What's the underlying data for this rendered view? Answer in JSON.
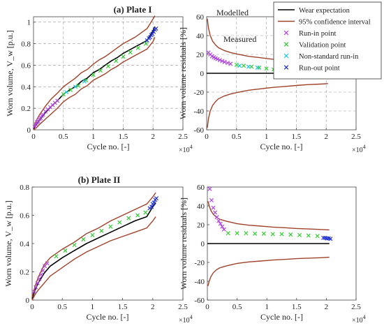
{
  "figure": {
    "panel_a_title": "(a) Plate I",
    "panel_b_title": "(b) Plate II",
    "annotations": {
      "modelled": "Modelled",
      "measured": "Measured"
    }
  },
  "legend": {
    "items": [
      {
        "label": "Wear expectation",
        "kind": "line",
        "color": "#000000"
      },
      {
        "label": "95% confidence interval",
        "kind": "line",
        "color": "#a0422a"
      },
      {
        "label": "Run-in point",
        "kind": "marker",
        "color": "#b044e0"
      },
      {
        "label": "Validation point",
        "kind": "marker",
        "color": "#33cc33"
      },
      {
        "label": "Non-standard run-in",
        "kind": "marker",
        "color": "#22c4e0"
      },
      {
        "label": "Run-out point",
        "kind": "marker",
        "color": "#1f2fd6"
      }
    ]
  },
  "chart_data": [
    {
      "type": "line",
      "panel": "top-left",
      "title": "(a) Plate I",
      "xlabel": "Cycle no. [-]",
      "ylabel": "Worn volume, V_w [p.u.]",
      "x_multiplier": "×10^4",
      "xlim": [
        0,
        2.5
      ],
      "ylim": [
        0,
        1.05
      ],
      "xticks": [
        "0",
        "0.5",
        "1",
        "1.5",
        "2",
        "2.5"
      ],
      "yticks": [
        "0",
        "0.2",
        "0.4",
        "0.6",
        "0.8",
        "1"
      ],
      "grid": true,
      "series": [
        {
          "name": "Wear expectation",
          "role": "expectation",
          "color": "#000000",
          "x": [
            0,
            0.05,
            0.1,
            0.2,
            0.3,
            0.4,
            0.5,
            0.6,
            0.7,
            0.8,
            0.9,
            1.0,
            1.1,
            1.2,
            1.3,
            1.4,
            1.5,
            1.6,
            1.7,
            1.8,
            1.9,
            2.0,
            2.03
          ],
          "y": [
            0.01,
            0.05,
            0.09,
            0.16,
            0.22,
            0.27,
            0.33,
            0.37,
            0.4,
            0.45,
            0.48,
            0.53,
            0.56,
            0.6,
            0.64,
            0.67,
            0.71,
            0.74,
            0.77,
            0.8,
            0.83,
            0.92,
            0.96
          ]
        },
        {
          "name": "95% confidence interval",
          "role": "ci_upper",
          "color": "#a0422a",
          "x": [
            0,
            0.05,
            0.1,
            0.2,
            0.3,
            0.4,
            0.5,
            0.6,
            0.7,
            0.8,
            0.9,
            1.0,
            1.1,
            1.2,
            1.3,
            1.4,
            1.5,
            1.6,
            1.7,
            1.8,
            1.9,
            2.0,
            2.03
          ],
          "y": [
            0.02,
            0.09,
            0.14,
            0.22,
            0.29,
            0.34,
            0.4,
            0.44,
            0.48,
            0.53,
            0.56,
            0.61,
            0.65,
            0.68,
            0.72,
            0.76,
            0.8,
            0.83,
            0.86,
            0.9,
            0.94,
            1.03,
            1.06
          ]
        },
        {
          "name": "95% confidence interval",
          "role": "ci_lower",
          "color": "#a0422a",
          "x": [
            0,
            0.05,
            0.1,
            0.2,
            0.3,
            0.4,
            0.5,
            0.6,
            0.7,
            0.8,
            0.9,
            1.0,
            1.1,
            1.2,
            1.3,
            1.4,
            1.5,
            1.6,
            1.7,
            1.8,
            1.9,
            2.0,
            2.03
          ],
          "y": [
            0.0,
            0.02,
            0.05,
            0.1,
            0.15,
            0.2,
            0.26,
            0.3,
            0.33,
            0.38,
            0.41,
            0.46,
            0.49,
            0.52,
            0.56,
            0.59,
            0.63,
            0.66,
            0.69,
            0.72,
            0.75,
            0.82,
            0.86
          ]
        },
        {
          "name": "Run-in point",
          "role": "points",
          "color": "#b044e0",
          "x": [
            0.02,
            0.04,
            0.06,
            0.08,
            0.1,
            0.12,
            0.14,
            0.16,
            0.2,
            0.24,
            0.28,
            0.32,
            0.36,
            0.4
          ],
          "y": [
            0.03,
            0.05,
            0.07,
            0.08,
            0.1,
            0.11,
            0.13,
            0.14,
            0.17,
            0.19,
            0.21,
            0.23,
            0.25,
            0.27
          ]
        },
        {
          "name": "Validation point",
          "role": "points",
          "color": "#33cc33",
          "x": [
            0.5,
            0.62,
            0.75,
            0.88,
            1.0,
            1.12,
            1.25,
            1.38,
            1.5,
            1.62,
            1.75,
            1.88
          ],
          "y": [
            0.33,
            0.37,
            0.41,
            0.46,
            0.51,
            0.55,
            0.59,
            0.64,
            0.68,
            0.72,
            0.76,
            0.8
          ]
        },
        {
          "name": "Non-standard run-in",
          "role": "points",
          "color": "#22c4e0",
          "x": [
            0.55,
            0.7,
            0.85
          ],
          "y": [
            0.35,
            0.4,
            0.45
          ]
        },
        {
          "name": "Run-out point",
          "role": "points",
          "color": "#1f2fd6",
          "x": [
            1.9,
            1.93,
            1.95,
            1.97,
            1.99,
            2.01,
            2.03,
            2.05
          ],
          "y": [
            0.83,
            0.85,
            0.86,
            0.88,
            0.89,
            0.91,
            0.93,
            0.94
          ]
        }
      ]
    },
    {
      "type": "line",
      "panel": "top-right",
      "title": "",
      "xlabel": "Cycle no. [-]",
      "ylabel": "Worn volume residuals [%]",
      "x_multiplier": "×10^4",
      "xlim": [
        0,
        2.5
      ],
      "ylim": [
        -60,
        60
      ],
      "xticks": [
        "0",
        "0.5",
        "1",
        "1.5",
        "2",
        "2.5"
      ],
      "yticks": [
        "-60",
        "-40",
        "-20",
        "0",
        "20",
        "40",
        "60"
      ],
      "grid": true,
      "series": [
        {
          "name": "Wear expectation",
          "role": "expectation",
          "color": "#000000",
          "x": [
            0,
            2.03
          ],
          "y": [
            0,
            0
          ]
        },
        {
          "name": "95% confidence interval",
          "role": "ci_upper",
          "color": "#a0422a",
          "x": [
            0.01,
            0.03,
            0.06,
            0.1,
            0.15,
            0.2,
            0.3,
            0.4,
            0.5,
            0.7,
            0.9,
            1.1,
            1.3,
            1.5,
            1.7,
            1.9,
            2.03
          ],
          "y": [
            58,
            48,
            40,
            34,
            30,
            27,
            24,
            22,
            20.5,
            18,
            16.5,
            15,
            14,
            13,
            12,
            11.5,
            11
          ]
        },
        {
          "name": "95% confidence interval",
          "role": "ci_lower",
          "color": "#a0422a",
          "x": [
            0.01,
            0.03,
            0.06,
            0.1,
            0.15,
            0.2,
            0.3,
            0.4,
            0.5,
            0.7,
            0.9,
            1.1,
            1.3,
            1.5,
            1.7,
            1.9,
            2.03
          ],
          "y": [
            -58,
            -48,
            -40,
            -34,
            -30,
            -27,
            -24,
            -22,
            -20.5,
            -18,
            -16.5,
            -15,
            -14,
            -13,
            -12,
            -11.5,
            -11
          ]
        },
        {
          "name": "Run-in point",
          "role": "points",
          "color": "#b044e0",
          "x": [
            0.03,
            0.06,
            0.09,
            0.12,
            0.15,
            0.18,
            0.22,
            0.26,
            0.3,
            0.35,
            0.4
          ],
          "y": [
            22,
            20,
            18,
            17,
            16,
            15,
            14,
            13,
            12,
            11,
            10
          ]
        },
        {
          "name": "Validation point",
          "role": "points",
          "color": "#33cc33",
          "x": [
            0.5,
            0.62,
            0.75,
            0.88,
            1.0,
            1.12,
            1.25,
            1.38,
            1.5,
            1.62,
            1.75,
            1.88
          ],
          "y": [
            9,
            8,
            7,
            6,
            5,
            4,
            3,
            2,
            1,
            0,
            -1,
            -1
          ]
        },
        {
          "name": "Non-standard run-in",
          "role": "points",
          "color": "#22c4e0",
          "x": [
            0.55,
            0.7,
            0.85
          ],
          "y": [
            8,
            7,
            6
          ]
        },
        {
          "name": "Run-out point",
          "role": "points",
          "color": "#1f2fd6",
          "x": [
            1.92,
            1.95,
            1.98,
            2.0,
            2.02,
            2.04
          ],
          "y": [
            -3,
            -3,
            -2,
            -2,
            -3,
            -2
          ]
        }
      ]
    },
    {
      "type": "line",
      "panel": "bottom-left",
      "title": "(b) Plate II",
      "xlabel": "Cycle no. [-]",
      "ylabel": "Worn volume, V_w [p.u.]",
      "x_multiplier": "×10^4",
      "xlim": [
        0,
        2.5
      ],
      "ylim": [
        0,
        0.8
      ],
      "xticks": [
        "0",
        "0.5",
        "1",
        "1.5",
        "2",
        "2.5"
      ],
      "yticks": [
        "0",
        "0.2",
        "0.4",
        "0.6",
        "0.8"
      ],
      "grid": false,
      "series": [
        {
          "name": "Wear expectation",
          "role": "expectation",
          "color": "#000000",
          "x": [
            0,
            0.05,
            0.1,
            0.2,
            0.3,
            0.5,
            0.7,
            0.9,
            1.1,
            1.3,
            1.5,
            1.7,
            1.9,
            2.0,
            2.05
          ],
          "y": [
            0.01,
            0.07,
            0.12,
            0.19,
            0.24,
            0.3,
            0.35,
            0.4,
            0.44,
            0.48,
            0.52,
            0.56,
            0.59,
            0.66,
            0.69
          ]
        },
        {
          "name": "95% confidence interval",
          "role": "ci_upper",
          "color": "#a0422a",
          "x": [
            0,
            0.05,
            0.1,
            0.2,
            0.3,
            0.5,
            0.7,
            0.9,
            1.1,
            1.3,
            1.5,
            1.7,
            1.9,
            2.0,
            2.05
          ],
          "y": [
            0.02,
            0.1,
            0.16,
            0.25,
            0.3,
            0.36,
            0.41,
            0.47,
            0.51,
            0.56,
            0.6,
            0.64,
            0.68,
            0.73,
            0.76
          ]
        },
        {
          "name": "95% confidence interval",
          "role": "ci_lower",
          "color": "#a0422a",
          "x": [
            0,
            0.05,
            0.1,
            0.2,
            0.3,
            0.5,
            0.7,
            0.9,
            1.1,
            1.3,
            1.5,
            1.7,
            1.9,
            2.0,
            2.05
          ],
          "y": [
            0.0,
            0.04,
            0.07,
            0.12,
            0.17,
            0.23,
            0.29,
            0.34,
            0.38,
            0.42,
            0.45,
            0.48,
            0.51,
            0.56,
            0.59
          ]
        },
        {
          "name": "Run-in point",
          "role": "points",
          "color": "#b044e0",
          "x": [
            0.03,
            0.06,
            0.09,
            0.12,
            0.15,
            0.18,
            0.21,
            0.25
          ],
          "y": [
            0.06,
            0.09,
            0.12,
            0.15,
            0.18,
            0.21,
            0.24,
            0.26
          ]
        },
        {
          "name": "Validation point",
          "role": "points",
          "color": "#33cc33",
          "x": [
            0.4,
            0.55,
            0.7,
            0.85,
            1.0,
            1.15,
            1.3,
            1.45,
            1.6,
            1.75,
            1.88
          ],
          "y": [
            0.31,
            0.35,
            0.39,
            0.43,
            0.46,
            0.49,
            0.52,
            0.55,
            0.58,
            0.6,
            0.62
          ]
        },
        {
          "name": "Run-out point",
          "role": "points",
          "color": "#1f2fd6",
          "x": [
            1.95,
            1.98,
            2.0,
            2.02,
            2.04,
            2.06
          ],
          "y": [
            0.65,
            0.66,
            0.68,
            0.69,
            0.71,
            0.72
          ]
        }
      ]
    },
    {
      "type": "line",
      "panel": "bottom-right",
      "title": "",
      "xlabel": "Cycle no. [-]",
      "ylabel": "Worn volume residuals [%]",
      "x_multiplier": "×10^4",
      "xlim": [
        0,
        2.5
      ],
      "ylim": [
        -60,
        60
      ],
      "xticks": [
        "0",
        "0.5",
        "1",
        "1.5",
        "2",
        "2.5"
      ],
      "yticks": [
        "-60",
        "-40",
        "-20",
        "0",
        "20",
        "40",
        "60"
      ],
      "grid": false,
      "series": [
        {
          "name": "Wear expectation",
          "role": "expectation",
          "color": "#000000",
          "x": [
            0,
            2.05
          ],
          "y": [
            0,
            0
          ]
        },
        {
          "name": "95% confidence interval",
          "role": "ci_upper",
          "color": "#a0422a",
          "x": [
            0.01,
            0.03,
            0.06,
            0.1,
            0.15,
            0.2,
            0.3,
            0.4,
            0.5,
            0.7,
            0.9,
            1.1,
            1.3,
            1.5,
            1.7,
            1.9,
            2.05
          ],
          "y": [
            45,
            40,
            35,
            31,
            28,
            26,
            24,
            22.5,
            21,
            19.5,
            18.5,
            17.5,
            16.8,
            16,
            15.5,
            15,
            14.5
          ]
        },
        {
          "name": "95% confidence interval",
          "role": "ci_lower",
          "color": "#a0422a",
          "x": [
            0.01,
            0.03,
            0.06,
            0.1,
            0.15,
            0.2,
            0.3,
            0.4,
            0.5,
            0.7,
            0.9,
            1.1,
            1.3,
            1.5,
            1.7,
            1.9,
            2.05
          ],
          "y": [
            -45,
            -40,
            -35,
            -31,
            -28,
            -26,
            -24,
            -22.5,
            -21,
            -19.5,
            -18.5,
            -17.5,
            -16.8,
            -16,
            -15.5,
            -15,
            -14.5
          ]
        },
        {
          "name": "Run-in point",
          "role": "points",
          "color": "#b044e0",
          "x": [
            0.04,
            0.07,
            0.1,
            0.13,
            0.16,
            0.19,
            0.22,
            0.25,
            0.28
          ],
          "y": [
            58,
            46,
            38,
            33,
            28,
            24,
            21,
            18,
            15
          ]
        },
        {
          "name": "Validation point",
          "role": "points",
          "color": "#33cc33",
          "x": [
            0.35,
            0.5,
            0.65,
            0.8,
            0.95,
            1.1,
            1.25,
            1.4,
            1.55,
            1.7,
            1.85
          ],
          "y": [
            11,
            11,
            11,
            10.5,
            10.5,
            10,
            10,
            9.5,
            9,
            8.5,
            8
          ]
        },
        {
          "name": "Run-out point",
          "role": "points",
          "color": "#1f2fd6",
          "x": [
            1.95,
            1.98,
            2.01,
            2.04,
            2.07
          ],
          "y": [
            6,
            6,
            5.5,
            5.5,
            5
          ]
        }
      ]
    }
  ]
}
